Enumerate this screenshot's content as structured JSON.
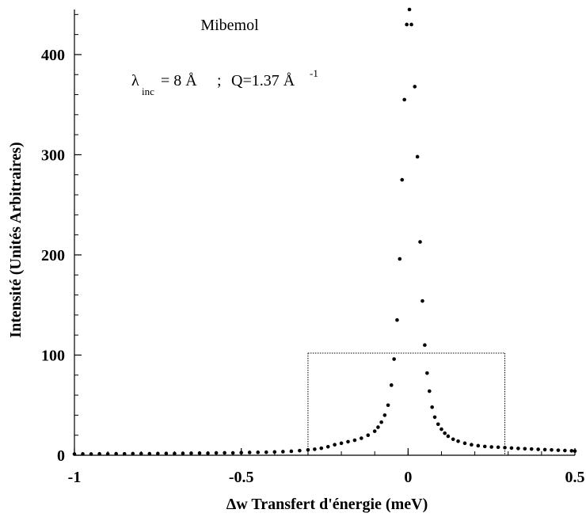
{
  "chart_data": {
    "type": "scatter",
    "title": "",
    "xlabel": "Δw Transfert d'énergie (meV)",
    "ylabel": "Intensité (Unités Arbitraires)",
    "xlim": [
      -1,
      0.5
    ],
    "ylim": [
      0,
      445
    ],
    "x_ticks": [
      -1,
      -0.5,
      0,
      0.5
    ],
    "x_tick_labels": [
      "-1",
      "-0.5",
      "0",
      "0.5"
    ],
    "y_ticks": [
      0,
      100,
      200,
      300,
      400
    ],
    "y_tick_labels": [
      "0",
      "100",
      "200",
      "300",
      "400"
    ],
    "grid": false,
    "legend": "none",
    "annotations": {
      "sample": "Mibemol",
      "lambda_symbol": "λ",
      "lambda_sub": "inc",
      "lambda_value": "= 8 Å",
      "separator": ";",
      "q_value": "Q=1.37 Å",
      "q_exponent": "-1"
    },
    "window": {
      "x_min": -0.3,
      "x_max": 0.29,
      "y_top": 102
    },
    "series": [
      {
        "marker": "circle",
        "color": "#000000",
        "points": [
          [
            -1.0,
            1.2
          ],
          [
            -0.975,
            1.3
          ],
          [
            -0.95,
            1.2
          ],
          [
            -0.925,
            1.4
          ],
          [
            -0.9,
            1.3
          ],
          [
            -0.875,
            1.5
          ],
          [
            -0.85,
            1.4
          ],
          [
            -0.825,
            1.6
          ],
          [
            -0.8,
            1.6
          ],
          [
            -0.775,
            1.5
          ],
          [
            -0.75,
            1.7
          ],
          [
            -0.725,
            1.8
          ],
          [
            -0.7,
            1.7
          ],
          [
            -0.675,
            1.9
          ],
          [
            -0.65,
            2.0
          ],
          [
            -0.625,
            2.1
          ],
          [
            -0.6,
            2.0
          ],
          [
            -0.575,
            2.3
          ],
          [
            -0.55,
            2.4
          ],
          [
            -0.525,
            2.3
          ],
          [
            -0.5,
            2.6
          ],
          [
            -0.475,
            2.8
          ],
          [
            -0.45,
            2.9
          ],
          [
            -0.425,
            3.0
          ],
          [
            -0.4,
            3.3
          ],
          [
            -0.375,
            3.6
          ],
          [
            -0.35,
            4.0
          ],
          [
            -0.325,
            4.6
          ],
          [
            -0.3,
            5.4
          ],
          [
            -0.28,
            6.0
          ],
          [
            -0.26,
            7.0
          ],
          [
            -0.24,
            8.5
          ],
          [
            -0.22,
            10.5
          ],
          [
            -0.2,
            12.0
          ],
          [
            -0.18,
            13.5
          ],
          [
            -0.16,
            15.0
          ],
          [
            -0.14,
            17.0
          ],
          [
            -0.12,
            20.0
          ],
          [
            -0.1,
            24.0
          ],
          [
            -0.09,
            28.0
          ],
          [
            -0.08,
            33.0
          ],
          [
            -0.07,
            40.0
          ],
          [
            -0.06,
            50.0
          ],
          [
            -0.05,
            70.0
          ],
          [
            -0.042,
            96.0
          ],
          [
            -0.033,
            135.0
          ],
          [
            -0.025,
            196.0
          ],
          [
            -0.018,
            275.0
          ],
          [
            -0.011,
            355.0
          ],
          [
            -0.004,
            430.0
          ],
          [
            0.004,
            445.0
          ],
          [
            0.01,
            430.0
          ],
          [
            0.02,
            368.0
          ],
          [
            0.028,
            298.0
          ],
          [
            0.036,
            213.0
          ],
          [
            0.043,
            154.0
          ],
          [
            0.05,
            110.0
          ],
          [
            0.057,
            82.0
          ],
          [
            0.064,
            64.0
          ],
          [
            0.072,
            48.0
          ],
          [
            0.08,
            38.0
          ],
          [
            0.09,
            31.0
          ],
          [
            0.1,
            26.0
          ],
          [
            0.11,
            22.0
          ],
          [
            0.12,
            19.0
          ],
          [
            0.135,
            16.0
          ],
          [
            0.15,
            14.0
          ],
          [
            0.17,
            12.0
          ],
          [
            0.19,
            10.5
          ],
          [
            0.21,
            9.5
          ],
          [
            0.23,
            8.8
          ],
          [
            0.25,
            8.3
          ],
          [
            0.27,
            8.0
          ],
          [
            0.29,
            7.6
          ],
          [
            0.31,
            7.2
          ],
          [
            0.33,
            6.8
          ],
          [
            0.35,
            6.5
          ],
          [
            0.37,
            6.2
          ],
          [
            0.39,
            5.9
          ],
          [
            0.41,
            5.6
          ],
          [
            0.43,
            5.3
          ],
          [
            0.45,
            5.0
          ],
          [
            0.47,
            4.7
          ],
          [
            0.49,
            4.4
          ],
          [
            0.5,
            4.2
          ]
        ]
      }
    ]
  }
}
